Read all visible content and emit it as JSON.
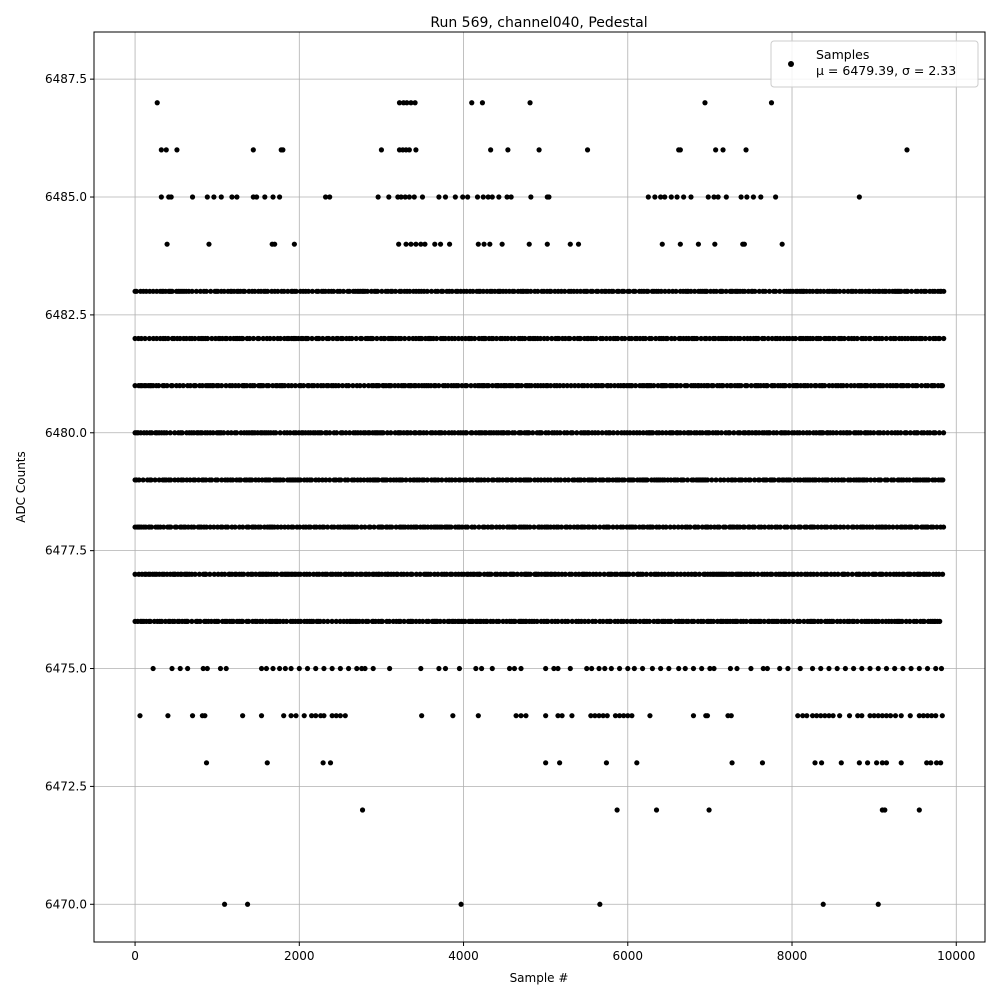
{
  "chart_data": {
    "type": "scatter",
    "title": "Run 569, channel040, Pedestal",
    "xlabel": "Sample #",
    "ylabel": "ADC Counts",
    "xlim": [
      -500,
      10350
    ],
    "ylim": [
      6469.2,
      6488.5
    ],
    "xticks": [
      0,
      2000,
      4000,
      6000,
      8000,
      10000
    ],
    "yticks": [
      6470.0,
      6472.5,
      6475.0,
      6477.5,
      6480.0,
      6482.5,
      6485.0,
      6487.5
    ],
    "grid": true,
    "legend_position": "top-right",
    "marker_color": "#000000",
    "grid_color": "#b0b0b0",
    "series": [
      {
        "name": "Samples",
        "legend_detail": "μ = 6479.39, σ = 2.33",
        "n_samples": 9850,
        "level_points": [
          {
            "y": 6487,
            "x": [
              270,
              3220,
              3270,
              3310,
              3360,
              3410,
              4100,
              4230,
              4810,
              6940,
              7750
            ]
          },
          {
            "y": 6486,
            "x": [
              320,
              380,
              510,
              1440,
              1780,
              1800,
              3000,
              3220,
              3260,
              3300,
              3340,
              3420,
              4330,
              4540,
              4920,
              5510,
              6620,
              6640,
              7070,
              7160,
              7440,
              9400
            ]
          },
          {
            "y": 6485,
            "x": [
              320,
              410,
              440,
              700,
              880,
              960,
              1050,
              1180,
              1240,
              1440,
              1480,
              1580,
              1680,
              1760,
              2320,
              2370,
              2960,
              3090,
              3200,
              3240,
              3290,
              3340,
              3400,
              3500,
              3700,
              3780,
              3900,
              3990,
              4050,
              4170,
              4240,
              4300,
              4350,
              4430,
              4530,
              4580,
              4820,
              5020,
              5040,
              6250,
              6330,
              6400,
              6450,
              6530,
              6600,
              6680,
              6770,
              6980,
              7050,
              7100,
              7200,
              7380,
              7450,
              7530,
              7620,
              7800,
              8820
            ]
          },
          {
            "y": 6484,
            "x": [
              390,
              900,
              1670,
              1700,
              1940,
              3210,
              3300,
              3360,
              3420,
              3480,
              3530,
              3650,
              3720,
              3830,
              4180,
              4250,
              4320,
              4470,
              4800,
              5020,
              5300,
              5400,
              6420,
              6640,
              6860,
              7060,
              7400,
              7420,
              7880
            ]
          },
          {
            "y": 6475,
            "x": [
              220,
              450,
              550,
              640,
              830,
              880,
              1040,
              1110,
              1540,
              1600,
              1680,
              1760,
              1830,
              1900,
              2000,
              2100,
              2200,
              2300,
              2400,
              2500,
              2600,
              2700,
              2760,
              2800,
              2900,
              3100,
              3480,
              3700,
              3780,
              3950,
              4150,
              4220,
              4350,
              4560,
              4620,
              4700,
              5000,
              5100,
              5150,
              5300,
              5500,
              5560,
              5650,
              5720,
              5800,
              5900,
              6000,
              6080,
              6180,
              6300,
              6400,
              6500,
              6620,
              6700,
              6800,
              6900,
              7000,
              7050,
              7250,
              7330,
              7500,
              7650,
              7700,
              7850,
              7950,
              8100,
              8250,
              8350,
              8450,
              8550,
              8650,
              8750,
              8850,
              8950,
              9050,
              9150,
              9250,
              9350,
              9450,
              9550,
              9650,
              9750,
              9820
            ]
          },
          {
            "y": 6474,
            "x": [
              60,
              400,
              700,
              820,
              850,
              1310,
              1540,
              1810,
              1900,
              1960,
              2060,
              2150,
              2200,
              2260,
              2300,
              2400,
              2450,
              2500,
              2560,
              3490,
              3870,
              4180,
              4640,
              4700,
              4760,
              5000,
              5150,
              5200,
              5320,
              5550,
              5600,
              5650,
              5700,
              5750,
              5850,
              5900,
              5950,
              6000,
              6050,
              6270,
              6800,
              6950,
              6970,
              7220,
              7260,
              8070,
              8130,
              8180,
              8250,
              8300,
              8350,
              8400,
              8450,
              8500,
              8580,
              8700,
              8800,
              8850,
              8950,
              9000,
              9050,
              9100,
              9150,
              9200,
              9260,
              9330,
              9440,
              9550,
              9600,
              9650,
              9700,
              9750,
              9830
            ]
          },
          {
            "y": 6473,
            "x": [
              870,
              1610,
              2290,
              2380,
              5000,
              5170,
              5740,
              6110,
              7270,
              7640,
              8280,
              8360,
              8600,
              8820,
              8920,
              9030,
              9100,
              9150,
              9330,
              9640,
              9690,
              9760,
              9810
            ]
          },
          {
            "y": 6472,
            "x": [
              2770,
              5870,
              6350,
              6990,
              9100,
              9130,
              9550
            ]
          },
          {
            "y": 6470,
            "x": [
              1090,
              1370,
              3970,
              5660,
              8380,
              9050
            ]
          }
        ],
        "dense_levels": [
          6476,
          6477,
          6478,
          6479,
          6480,
          6481,
          6482,
          6483
        ]
      }
    ]
  }
}
